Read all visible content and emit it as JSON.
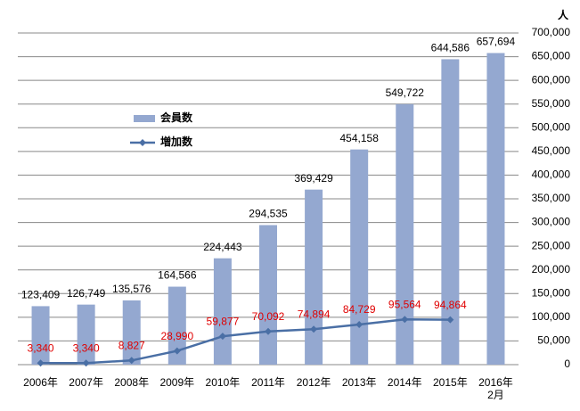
{
  "chart_data": {
    "type": "bar_line",
    "y_axis_label": "人",
    "categories": [
      "2006年",
      "2007年",
      "2008年",
      "2009年",
      "2010年",
      "2011年",
      "2012年",
      "2013年",
      "2014年",
      "2015年",
      "2016年\n2月"
    ],
    "series": [
      {
        "name": "会員数",
        "type": "bar",
        "color": "#94a8d0",
        "values": [
          123409,
          126749,
          135576,
          164566,
          224443,
          294535,
          369429,
          454158,
          549722,
          644586,
          657694
        ],
        "value_labels": [
          "123,409",
          "126,749",
          "135,576",
          "164,566",
          "224,443",
          "294,535",
          "369,429",
          "454,158",
          "549,722",
          "644,586",
          "657,694"
        ],
        "label_color": "#000000"
      },
      {
        "name": "増加数",
        "type": "line",
        "color": "#4a6fa5",
        "values": [
          3340,
          3340,
          8827,
          28990,
          59877,
          70092,
          74894,
          84729,
          95564,
          94864,
          null
        ],
        "value_labels": [
          "3,340",
          "3,340",
          "8,827",
          "28,990",
          "59,877",
          "70,092",
          "74,894",
          "84,729",
          "95,564",
          "94,864",
          null
        ],
        "label_color": "#e00000"
      }
    ],
    "ylim": [
      0,
      700000
    ],
    "yticks": [
      0,
      {
        "value": 50000,
        "label": "50,000"
      },
      {
        "value": 100000,
        "label": "100,000"
      },
      {
        "value": 150000,
        "label": "150,000"
      },
      {
        "value": 200000,
        "label": "200,000"
      },
      {
        "value": 250000,
        "label": "250,000"
      },
      {
        "value": 300000,
        "label": "300,000"
      },
      {
        "value": 350000,
        "label": "350,000"
      },
      {
        "value": 400000,
        "label": "400,000"
      },
      {
        "value": 450000,
        "label": "450,000"
      },
      {
        "value": 500000,
        "label": "500,000"
      },
      {
        "value": 550000,
        "label": "550,000"
      },
      {
        "value": 600000,
        "label": "600,000"
      },
      {
        "value": 650000,
        "label": "650,000"
      },
      {
        "value": 700000,
        "label": "700,000"
      }
    ],
    "y_axis_side": "right",
    "grid": true,
    "legend_position": "upper left"
  }
}
